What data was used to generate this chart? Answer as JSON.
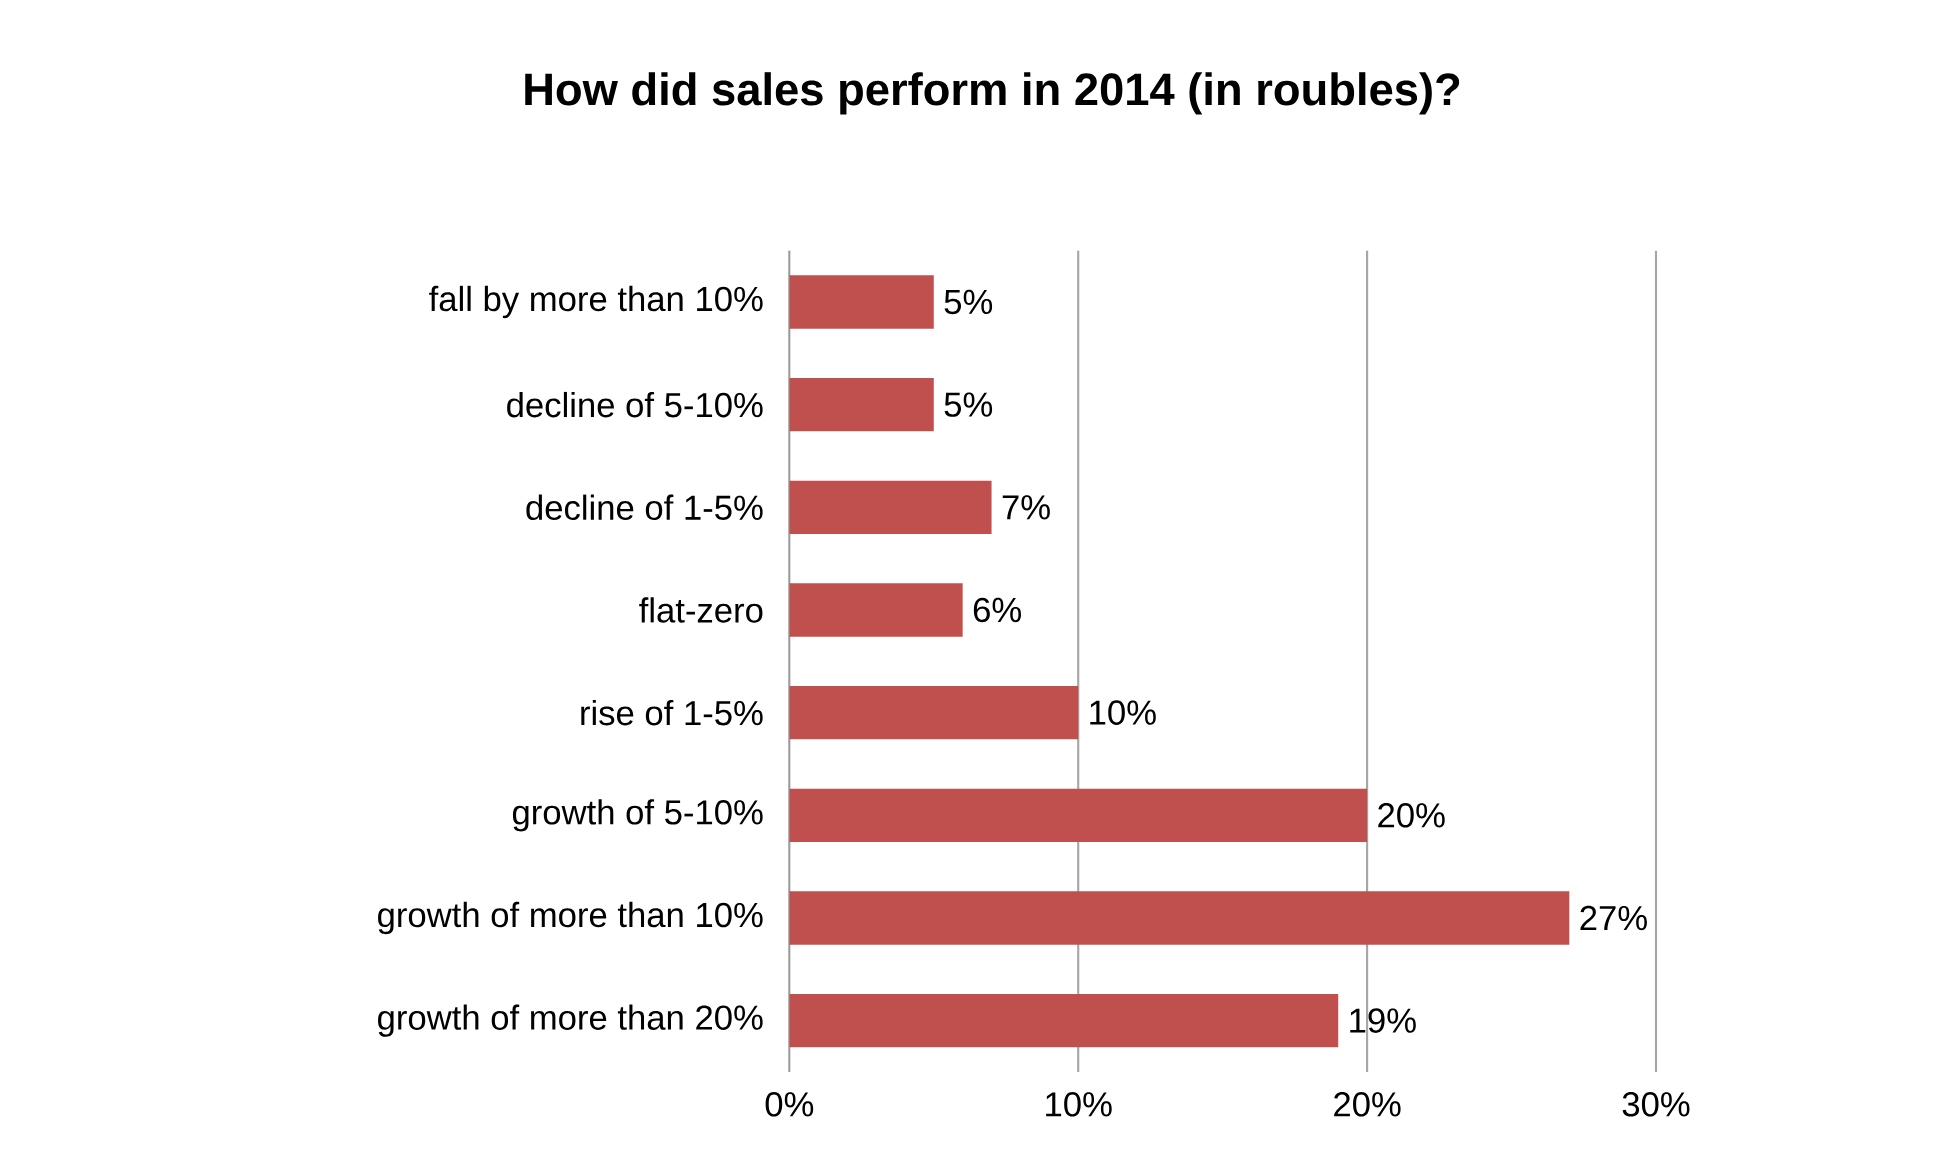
{
  "chart_data": {
    "type": "bar",
    "orientation": "horizontal",
    "title": "How did sales perform in 2014 (in roubles)?",
    "categories": [
      "fall by more than 10%",
      "decline of 5-10%",
      "decline of 1-5%",
      "flat-zero",
      "rise of 1-5%",
      "growth of 5-10%",
      "growth of more than 10%",
      "growth of more than 20%"
    ],
    "values": [
      5,
      5,
      7,
      6,
      10,
      20,
      27,
      19
    ],
    "value_labels": [
      "5%",
      "5%",
      "7%",
      "6%",
      "10%",
      "20%",
      "27%",
      "19%"
    ],
    "color": "#c0504d",
    "xlim": [
      0,
      30
    ],
    "xticks": [
      {
        "value": 0,
        "label": "0%"
      },
      {
        "value": 10,
        "label": "10%"
      },
      {
        "value": 20,
        "label": "20%"
      },
      {
        "value": 30,
        "label": "30%"
      }
    ],
    "grid": "x"
  }
}
